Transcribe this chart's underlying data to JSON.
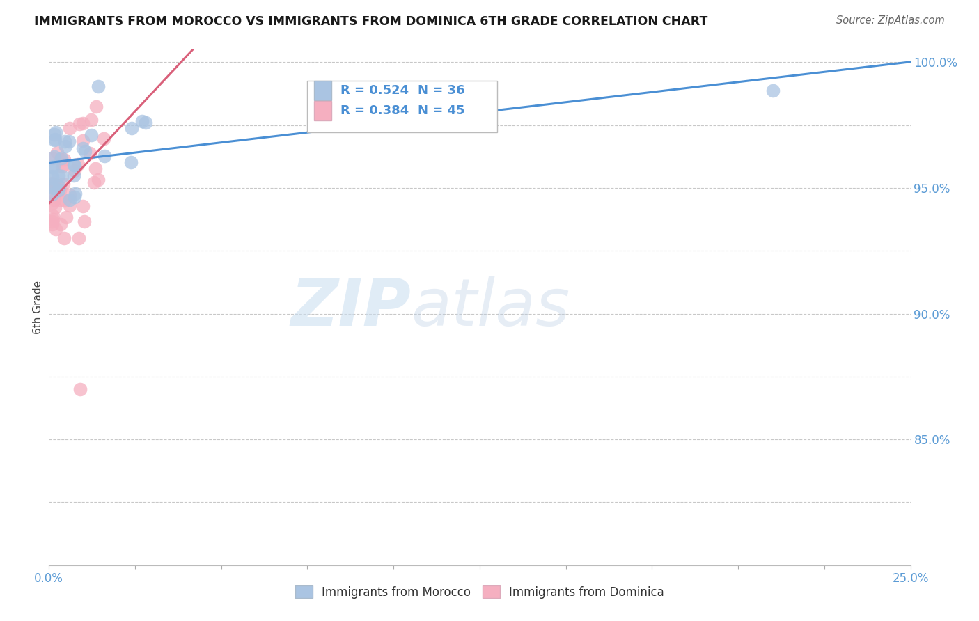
{
  "title": "IMMIGRANTS FROM MOROCCO VS IMMIGRANTS FROM DOMINICA 6TH GRADE CORRELATION CHART",
  "source": "Source: ZipAtlas.com",
  "ylabel": "6th Grade",
  "xlim": [
    0.0,
    0.25
  ],
  "ylim": [
    0.8,
    1.005
  ],
  "ytick_positions": [
    0.8,
    0.825,
    0.85,
    0.875,
    0.9,
    0.925,
    0.95,
    0.975,
    1.0
  ],
  "ytick_labels": [
    "",
    "",
    "85.0%",
    "",
    "90.0%",
    "",
    "95.0%",
    "",
    "100.0%"
  ],
  "xtick_positions": [
    0.0,
    0.025,
    0.05,
    0.075,
    0.1,
    0.125,
    0.15,
    0.175,
    0.2,
    0.225,
    0.25
  ],
  "xtick_labels": [
    "0.0%",
    "",
    "",
    "",
    "",
    "",
    "",
    "",
    "",
    "",
    "25.0%"
  ],
  "grid_color": "#c8c8c8",
  "background_color": "#ffffff",
  "morocco_color": "#aac4e2",
  "dominica_color": "#f5afc0",
  "trend_morocco_color": "#4a8fd4",
  "trend_dominica_color": "#d9607a",
  "axis_label_color": "#5b9bd5",
  "R_morocco": 0.524,
  "N_morocco": 36,
  "R_dominica": 0.384,
  "N_dominica": 45,
  "legend_label_morocco": "Immigrants from Morocco",
  "legend_label_dominica": "Immigrants from Dominica",
  "watermark_zip": "ZIP",
  "watermark_atlas": "atlas",
  "title_color": "#1a1a1a",
  "ylabel_color": "#444444",
  "legend_text_color": "#4a8fd4"
}
